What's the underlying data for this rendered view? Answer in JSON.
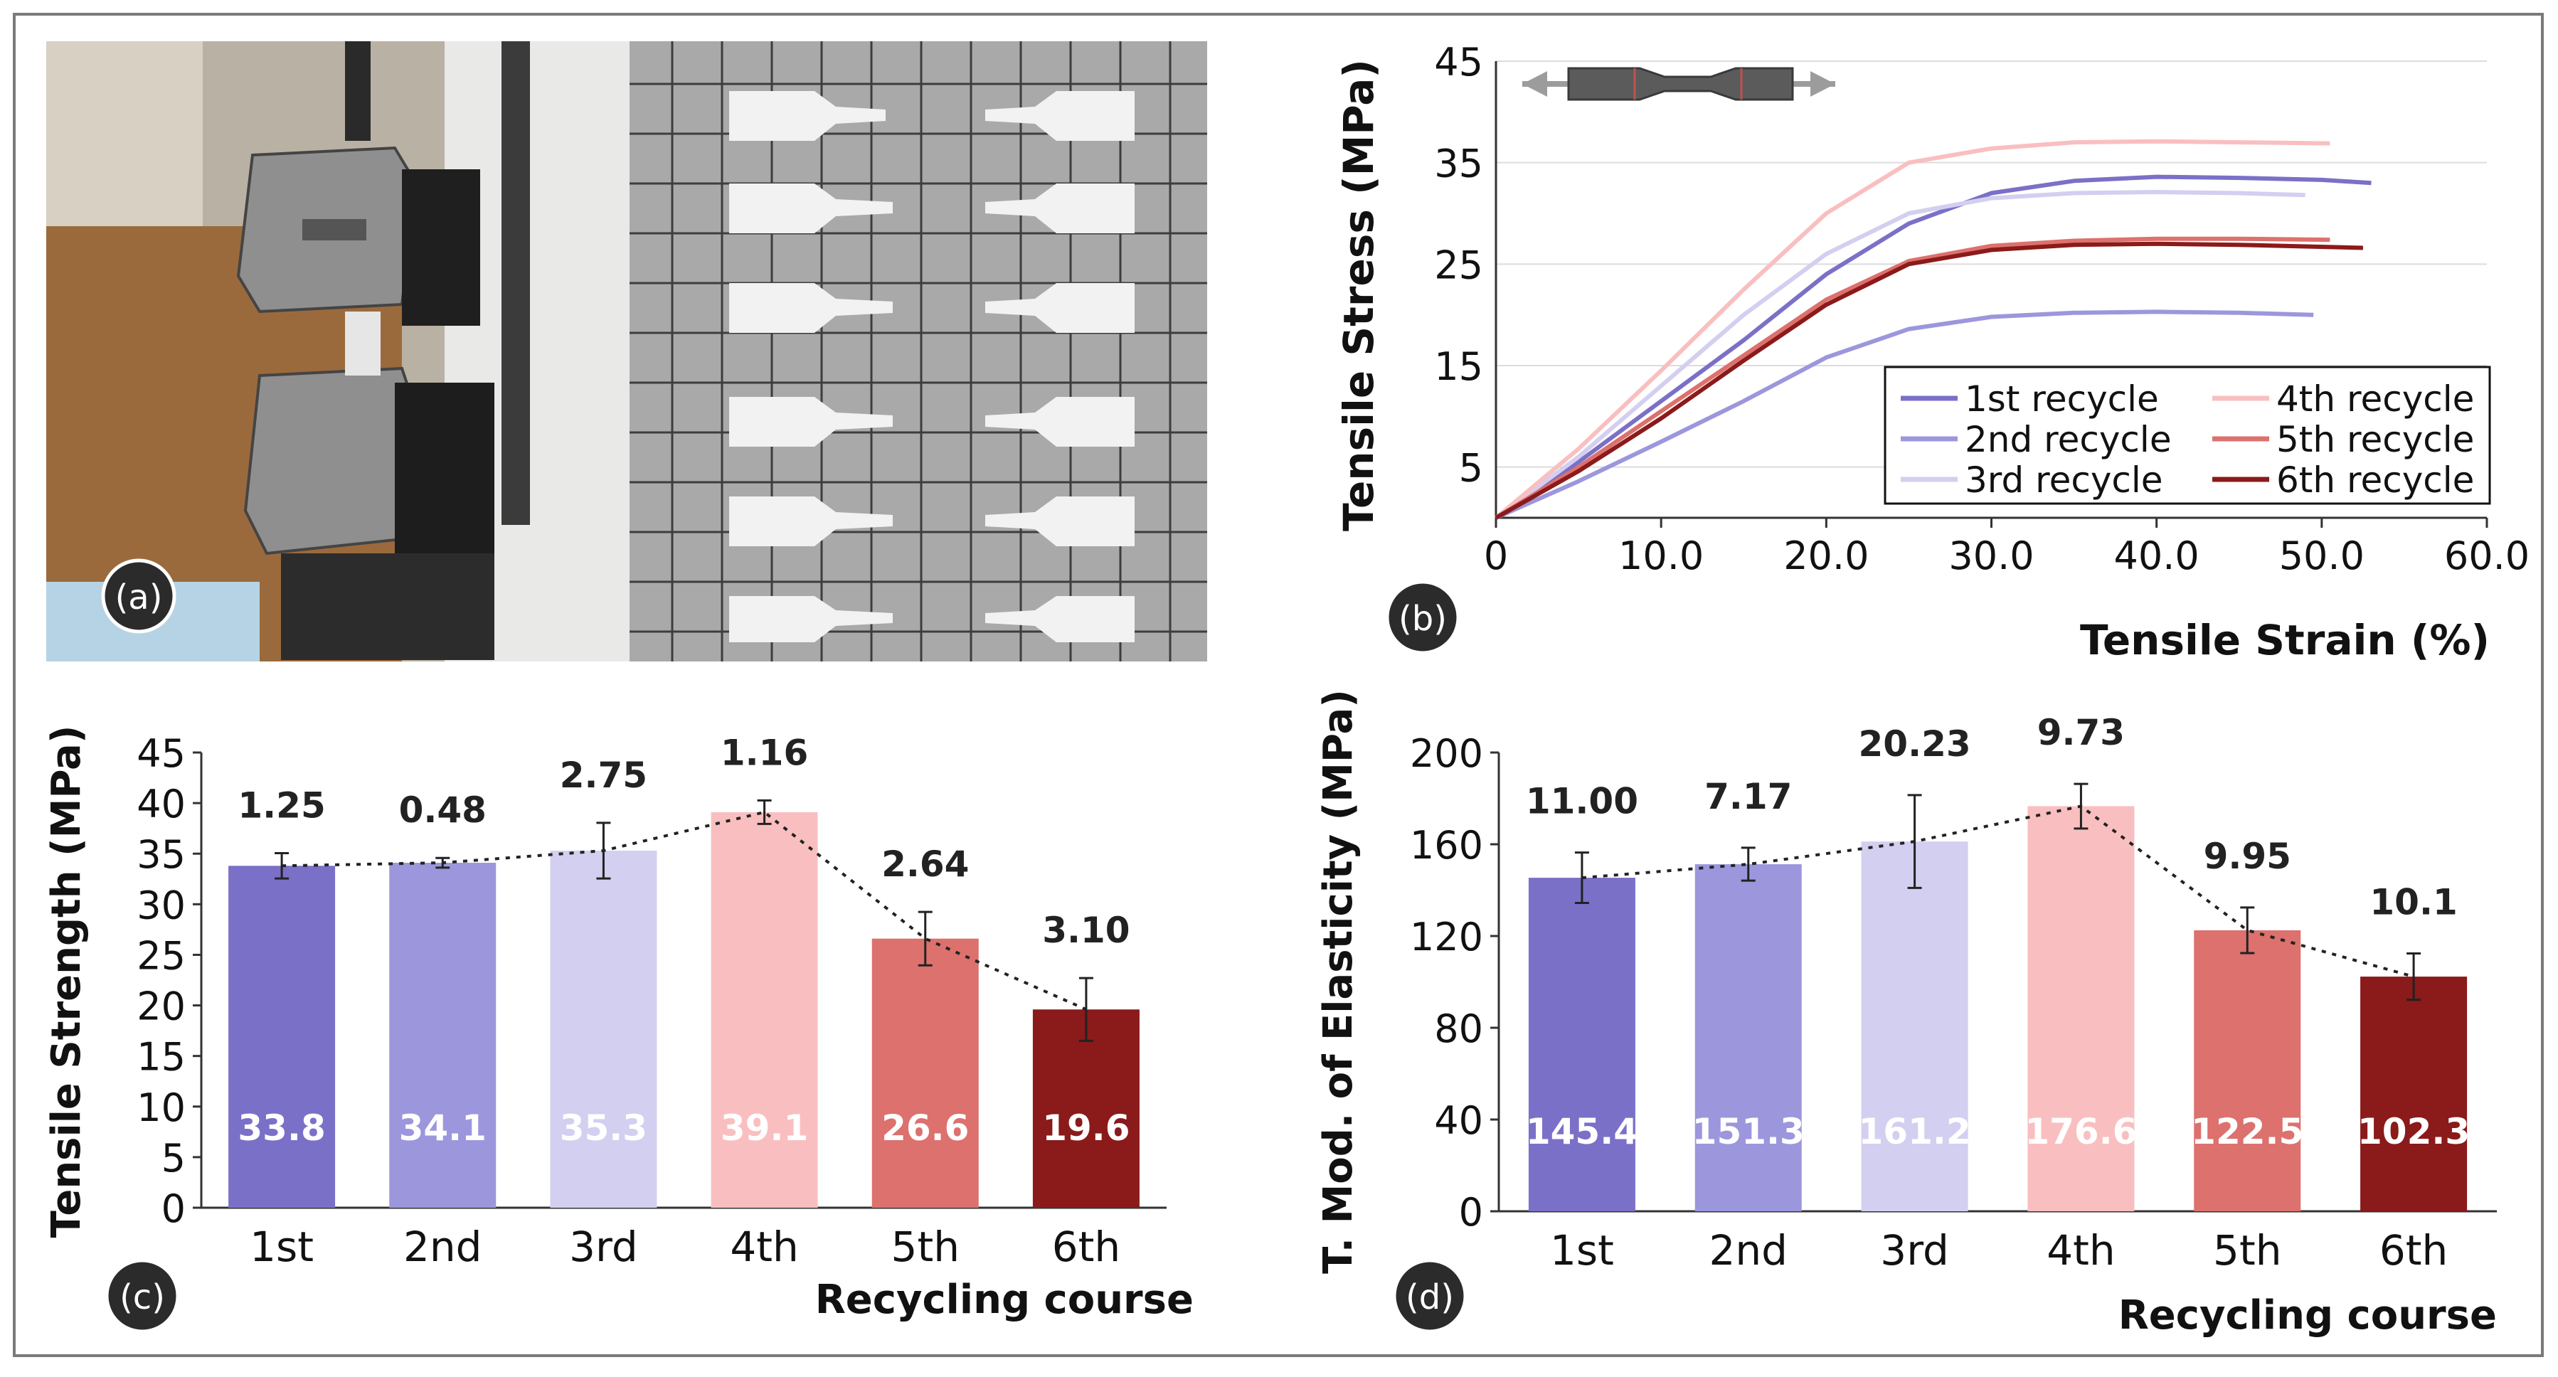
{
  "panel_labels": {
    "a": "(a)",
    "b": "(b)",
    "c": "(c)",
    "d": "(d)"
  },
  "colors": {
    "r1": "#7b70c7",
    "r2": "#9c97dc",
    "r3": "#d3cff0",
    "r4": "#f9bfc0",
    "r5": "#dc716d",
    "r6": "#8b1a1a"
  },
  "chart_data": [
    {
      "type": "line",
      "panel": "b",
      "title": "",
      "xlabel": "Tensile Strain (%)",
      "ylabel": "Tensile Stress (MPa)",
      "xlim": [
        0,
        60
      ],
      "ylim": [
        0,
        45
      ],
      "xticks": [
        "0",
        "10.0",
        "20.0",
        "30.0",
        "40.0",
        "50.0",
        "60.0"
      ],
      "yticks": [
        "5",
        "15",
        "25",
        "35",
        "45"
      ],
      "legend": [
        "1st recycle",
        "2nd recycle",
        "3rd recycle",
        "4th recycle",
        "5th recycle",
        "6th recycle"
      ],
      "legend_position": "bottom-right",
      "series": [
        {
          "name": "1st recycle",
          "x": [
            0,
            5,
            10,
            15,
            20,
            25,
            30,
            35,
            40,
            45,
            50,
            53
          ],
          "y": [
            0,
            5.5,
            11.5,
            17.5,
            24,
            29,
            32,
            33.2,
            33.6,
            33.5,
            33.3,
            33
          ]
        },
        {
          "name": "2nd recycle",
          "x": [
            0,
            5,
            10,
            15,
            20,
            25,
            30,
            35,
            40,
            45,
            49.5
          ],
          "y": [
            0,
            3.6,
            7.5,
            11.5,
            15.8,
            18.6,
            19.8,
            20.2,
            20.3,
            20.2,
            20
          ]
        },
        {
          "name": "3rd recycle",
          "x": [
            0,
            5,
            10,
            15,
            20,
            25,
            30,
            35,
            40,
            45,
            49
          ],
          "y": [
            0,
            6,
            13,
            20,
            26,
            30,
            31.5,
            32,
            32.1,
            32,
            31.8
          ]
        },
        {
          "name": "4th recycle",
          "x": [
            0,
            5,
            10,
            15,
            20,
            25,
            30,
            35,
            40,
            45,
            50.5
          ],
          "y": [
            0,
            6.8,
            14.5,
            22.5,
            30,
            35,
            36.4,
            37,
            37.1,
            37,
            36.9
          ]
        },
        {
          "name": "5th recycle",
          "x": [
            0,
            5,
            10,
            15,
            20,
            25,
            30,
            35,
            40,
            45,
            50.5
          ],
          "y": [
            0,
            5,
            10.5,
            16,
            21.5,
            25.3,
            26.8,
            27.3,
            27.5,
            27.5,
            27.4
          ]
        },
        {
          "name": "6th recycle",
          "x": [
            0,
            5,
            10,
            15,
            20,
            25,
            30,
            35,
            40,
            45,
            52.5
          ],
          "y": [
            0,
            4.6,
            9.8,
            15.5,
            21,
            25,
            26.4,
            26.9,
            27,
            26.9,
            26.6
          ]
        }
      ]
    },
    {
      "type": "bar",
      "panel": "c",
      "title": "",
      "xlabel": "Recycling course",
      "ylabel": "Tensile Strength (MPa)",
      "ylim": [
        0,
        45
      ],
      "yticks": [
        "0",
        "5",
        "10",
        "15",
        "20",
        "25",
        "30",
        "35",
        "40",
        "45"
      ],
      "categories": [
        "1st",
        "2nd",
        "3rd",
        "4th",
        "5th",
        "6th"
      ],
      "values": [
        33.8,
        34.1,
        35.3,
        39.1,
        26.6,
        19.6
      ],
      "errors": [
        1.25,
        0.48,
        2.75,
        1.16,
        2.64,
        3.1
      ],
      "value_labels": [
        "33.8",
        "34.1",
        "35.3",
        "39.1",
        "26.6",
        "19.6"
      ],
      "error_labels": [
        "1.25",
        "0.48",
        "2.75",
        "1.16",
        "2.64",
        "3.10"
      ],
      "trend_line": "dotted"
    },
    {
      "type": "bar",
      "panel": "d",
      "title": "",
      "xlabel": "Recycling course",
      "ylabel": "T. Mod. of Elasticity (MPa)",
      "ylim": [
        0,
        200
      ],
      "yticks": [
        "0",
        "40",
        "80",
        "120",
        "160",
        "200"
      ],
      "categories": [
        "1st",
        "2nd",
        "3rd",
        "4th",
        "5th",
        "6th"
      ],
      "values": [
        145.4,
        151.3,
        161.2,
        176.6,
        122.5,
        102.3
      ],
      "errors": [
        11.0,
        7.17,
        20.23,
        9.73,
        9.95,
        10.1
      ],
      "value_labels": [
        "145.4",
        "151.3",
        "161.2",
        "176.6",
        "122.5",
        "102.3"
      ],
      "error_labels": [
        "11.00",
        "7.17",
        "20.23",
        "9.73",
        "9.95",
        "10.1"
      ],
      "trend_line": "dotted"
    }
  ]
}
